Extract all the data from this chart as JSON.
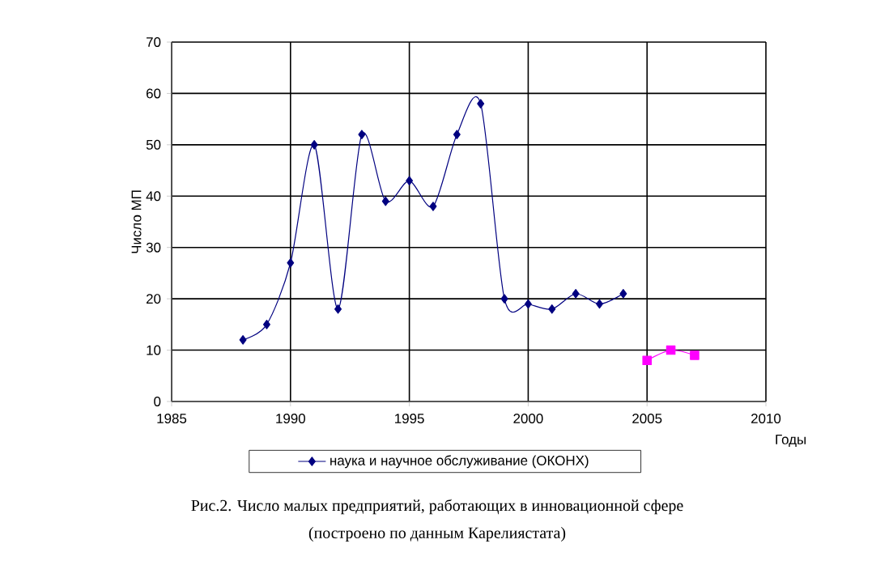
{
  "chart_data": {
    "type": "line",
    "xlabel": "Годы",
    "ylabel": "Число МП",
    "xlim": [
      1985,
      2010
    ],
    "ylim": [
      0,
      70
    ],
    "xticks": [
      1985,
      1990,
      1995,
      2000,
      2005,
      2010
    ],
    "yticks": [
      0,
      10,
      20,
      30,
      40,
      50,
      60,
      70
    ],
    "grid": true,
    "legend": "bottom",
    "line_style": "solid",
    "series": [
      {
        "name": "наука и научное обслуживание (ОКОНХ)",
        "color": "#000080",
        "marker": "diamond",
        "x": [
          1988,
          1989,
          1990,
          1991,
          1992,
          1993,
          1994,
          1995,
          1996,
          1997,
          1998,
          1999,
          2000,
          2001,
          2002,
          2003,
          2004
        ],
        "values": [
          12,
          15,
          27,
          50,
          18,
          52,
          39,
          43,
          38,
          52,
          58,
          20,
          19,
          18,
          21,
          19,
          21
        ]
      },
      {
        "color": "#ff00ff",
        "marker": "square",
        "x": [
          2005,
          2006,
          2007
        ],
        "values": [
          8,
          10,
          9
        ]
      }
    ],
    "annotations": [
      "Рис.2. Число малых предприятий, работающих в инновационной сфере",
      "(построено по данным Карелиястата)"
    ]
  }
}
